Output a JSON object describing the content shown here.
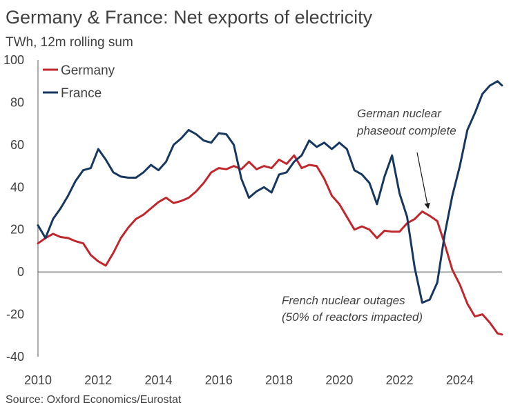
{
  "title": "Germany & France: Net exports of electricity",
  "subtitle": "TWh, 12m rolling sum",
  "source": "Source: Oxford Economics/Eurostat",
  "chart_data": {
    "type": "line",
    "title": "Germany & France: Net exports of electricity",
    "subtitle": "TWh, 12m rolling sum",
    "xlabel": "",
    "ylabel": "",
    "xlim": [
      2010.0,
      2025.4
    ],
    "ylim": [
      -40,
      100
    ],
    "x_ticks": [
      "2010",
      "2012",
      "2014",
      "2016",
      "2018",
      "2020",
      "2022",
      "2024"
    ],
    "y_ticks": [
      "100",
      "80",
      "60",
      "40",
      "20",
      "0",
      "-20",
      "-40"
    ],
    "grid": false,
    "legend": {
      "position": "top-left"
    },
    "series": [
      {
        "name": "Germany",
        "color": "#c0272d",
        "points": [
          [
            2010.0,
            13.5
          ],
          [
            2010.25,
            16
          ],
          [
            2010.5,
            18
          ],
          [
            2010.75,
            16.5
          ],
          [
            2011.0,
            16
          ],
          [
            2011.25,
            14.5
          ],
          [
            2011.5,
            13.5
          ],
          [
            2011.75,
            8
          ],
          [
            2012.0,
            5
          ],
          [
            2012.25,
            3
          ],
          [
            2012.5,
            9
          ],
          [
            2012.75,
            16
          ],
          [
            2013.0,
            21
          ],
          [
            2013.25,
            25
          ],
          [
            2013.5,
            27
          ],
          [
            2013.75,
            30
          ],
          [
            2014.0,
            33
          ],
          [
            2014.25,
            35
          ],
          [
            2014.5,
            32.5
          ],
          [
            2014.75,
            33.5
          ],
          [
            2015.0,
            35
          ],
          [
            2015.25,
            38
          ],
          [
            2015.5,
            42
          ],
          [
            2015.75,
            47
          ],
          [
            2016.0,
            49
          ],
          [
            2016.25,
            48.5
          ],
          [
            2016.5,
            50
          ],
          [
            2016.75,
            48.5
          ],
          [
            2017.0,
            52
          ],
          [
            2017.25,
            48.5
          ],
          [
            2017.5,
            50
          ],
          [
            2017.75,
            49
          ],
          [
            2018.0,
            53
          ],
          [
            2018.25,
            51
          ],
          [
            2018.5,
            55
          ],
          [
            2018.75,
            49
          ],
          [
            2019.0,
            50.5
          ],
          [
            2019.25,
            50
          ],
          [
            2019.5,
            44
          ],
          [
            2019.75,
            36
          ],
          [
            2020.0,
            32
          ],
          [
            2020.25,
            26
          ],
          [
            2020.5,
            20
          ],
          [
            2020.75,
            21.5
          ],
          [
            2021.0,
            20
          ],
          [
            2021.25,
            16
          ],
          [
            2021.5,
            19.5
          ],
          [
            2021.75,
            19
          ],
          [
            2022.0,
            19
          ],
          [
            2022.25,
            23
          ],
          [
            2022.5,
            25
          ],
          [
            2022.75,
            28.5
          ],
          [
            2023.0,
            26.5
          ],
          [
            2023.25,
            24
          ],
          [
            2023.5,
            13
          ],
          [
            2023.75,
            1
          ],
          [
            2024.0,
            -6
          ],
          [
            2024.25,
            -15
          ],
          [
            2024.5,
            -21
          ],
          [
            2024.75,
            -20
          ],
          [
            2025.0,
            -24
          ],
          [
            2025.25,
            -29
          ],
          [
            2025.4,
            -29.5
          ]
        ]
      },
      {
        "name": "France",
        "color": "#17375e",
        "points": [
          [
            2010.0,
            22
          ],
          [
            2010.25,
            16
          ],
          [
            2010.5,
            25
          ],
          [
            2010.75,
            30
          ],
          [
            2011.0,
            36
          ],
          [
            2011.25,
            43
          ],
          [
            2011.5,
            48
          ],
          [
            2011.75,
            49
          ],
          [
            2012.0,
            58
          ],
          [
            2012.25,
            53
          ],
          [
            2012.5,
            47
          ],
          [
            2012.75,
            45
          ],
          [
            2013.0,
            44.5
          ],
          [
            2013.25,
            44.5
          ],
          [
            2013.5,
            47
          ],
          [
            2013.75,
            50.5
          ],
          [
            2014.0,
            48
          ],
          [
            2014.25,
            52
          ],
          [
            2014.5,
            60
          ],
          [
            2014.75,
            63
          ],
          [
            2015.0,
            67
          ],
          [
            2015.25,
            65
          ],
          [
            2015.5,
            62
          ],
          [
            2015.75,
            61
          ],
          [
            2016.0,
            65.5
          ],
          [
            2016.25,
            65
          ],
          [
            2016.5,
            60
          ],
          [
            2016.75,
            44
          ],
          [
            2017.0,
            35
          ],
          [
            2017.25,
            38
          ],
          [
            2017.5,
            40
          ],
          [
            2017.75,
            37.5
          ],
          [
            2018.0,
            46
          ],
          [
            2018.25,
            47
          ],
          [
            2018.5,
            52
          ],
          [
            2018.75,
            55
          ],
          [
            2019.0,
            62
          ],
          [
            2019.25,
            59
          ],
          [
            2019.5,
            61
          ],
          [
            2019.75,
            58
          ],
          [
            2020.0,
            61
          ],
          [
            2020.25,
            58
          ],
          [
            2020.5,
            48
          ],
          [
            2020.75,
            46
          ],
          [
            2021.0,
            42
          ],
          [
            2021.25,
            32
          ],
          [
            2021.5,
            45
          ],
          [
            2021.75,
            55
          ],
          [
            2022.0,
            37
          ],
          [
            2022.25,
            26
          ],
          [
            2022.5,
            2
          ],
          [
            2022.75,
            -14.5
          ],
          [
            2023.0,
            -13
          ],
          [
            2023.25,
            -5
          ],
          [
            2023.5,
            18
          ],
          [
            2023.75,
            36
          ],
          [
            2024.0,
            50
          ],
          [
            2024.25,
            67
          ],
          [
            2024.5,
            75
          ],
          [
            2024.75,
            84
          ],
          [
            2025.0,
            88
          ],
          [
            2025.25,
            90
          ],
          [
            2025.4,
            88
          ]
        ]
      }
    ],
    "annotations": [
      {
        "lines": [
          "German nuclear",
          "phaseout complete"
        ],
        "arrow_to": [
          2022.95,
          30
        ]
      },
      {
        "lines": [
          "French nuclear outages",
          "(50% of reactors impacted)"
        ]
      }
    ]
  }
}
